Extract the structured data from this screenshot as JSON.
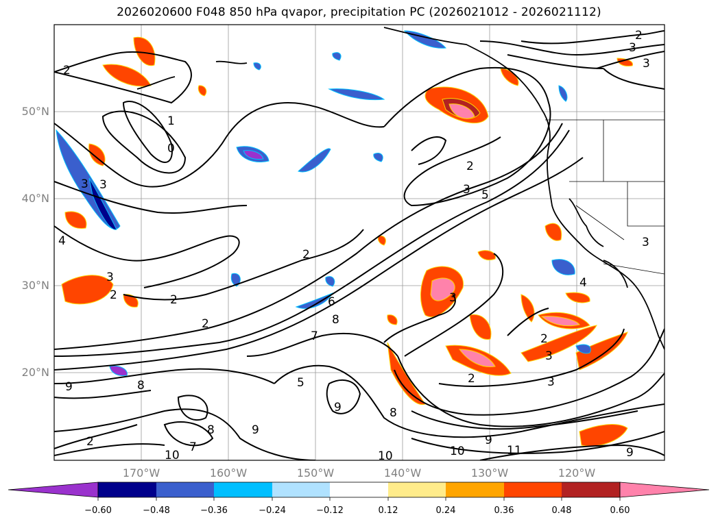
{
  "title": "2026020600 F048 850 hPa qvapor, precipitation PC (2026021012 - 2026021112)",
  "map": {
    "projection": "plate-carree",
    "lon_range": [
      -180,
      -110
    ],
    "lat_range": [
      10,
      60
    ],
    "gridlines": true,
    "lat_ticks": [
      "50°N",
      "40°N",
      "30°N",
      "20°N"
    ],
    "lon_ticks": [
      "170°W",
      "160°W",
      "150°W",
      "140°W",
      "130°W",
      "120°W"
    ],
    "contour_labels": [
      "2",
      "3",
      "3",
      "2",
      "1",
      "0",
      "3",
      "3",
      "4",
      "2",
      "3",
      "5",
      "2",
      "2",
      "2",
      "2",
      "3",
      "6",
      "8",
      "7",
      "9",
      "5",
      "8",
      "9",
      "8",
      "9",
      "7",
      "8",
      "9",
      "10",
      "10",
      "11",
      "9",
      "10",
      "3",
      "2",
      "2",
      "3",
      "3",
      "2",
      "3",
      "4"
    ]
  },
  "colorbar": {
    "colors": [
      "#9a32cd",
      "#00008b",
      "#3a5fcd",
      "#00bfff",
      "#b0e2ff",
      "#ffffff",
      "#ffec8b",
      "#ffa500",
      "#ff4500",
      "#b22222",
      "#ff82ab"
    ],
    "tick_labels": [
      "−0.60",
      "−0.48",
      "−0.36",
      "−0.24",
      "−0.12",
      "0.12",
      "0.24",
      "0.36",
      "0.48",
      "0.60"
    ]
  },
  "legend_colors": {
    "grid": "#999999",
    "contour": "#000000",
    "tick_text": "#808080"
  }
}
